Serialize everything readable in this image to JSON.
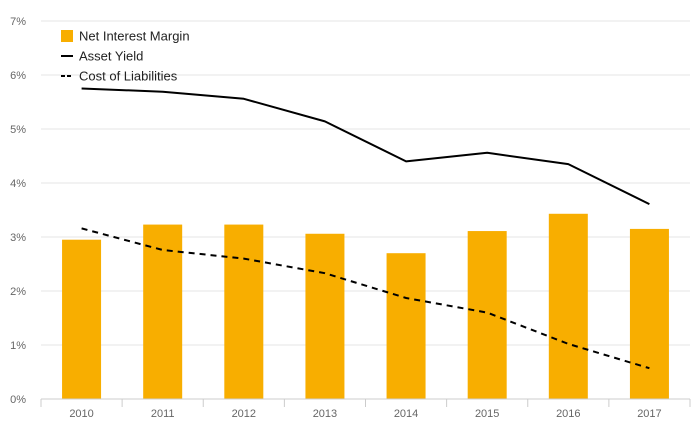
{
  "chart_data": {
    "type": "bar",
    "categories": [
      "2010",
      "2011",
      "2012",
      "2013",
      "2014",
      "2015",
      "2016",
      "2017"
    ],
    "series": [
      {
        "name": "Net Interest Margin",
        "type": "bar",
        "color": "#f8ae00",
        "values": [
          2.95,
          3.23,
          3.23,
          3.06,
          2.7,
          3.11,
          3.43,
          3.15
        ]
      },
      {
        "name": "Asset Yield",
        "type": "line",
        "style": "solid",
        "color": "#000000",
        "values": [
          5.75,
          5.69,
          5.56,
          5.14,
          4.4,
          4.56,
          4.35,
          3.61
        ]
      },
      {
        "name": "Cost of Liabilities",
        "type": "line",
        "style": "dashed",
        "color": "#000000",
        "values": [
          3.16,
          2.76,
          2.6,
          2.33,
          1.87,
          1.6,
          1.02,
          0.57
        ]
      }
    ],
    "yticks": [
      "0%",
      "1%",
      "2%",
      "3%",
      "4%",
      "5%",
      "6%",
      "7%"
    ],
    "ylim": [
      0,
      7
    ],
    "grid": true,
    "legend": "top-left",
    "colors": {
      "bar": "#f8ae00",
      "line": "#000000",
      "grid": "#e6e6e6",
      "tick_text": "#666666"
    }
  }
}
